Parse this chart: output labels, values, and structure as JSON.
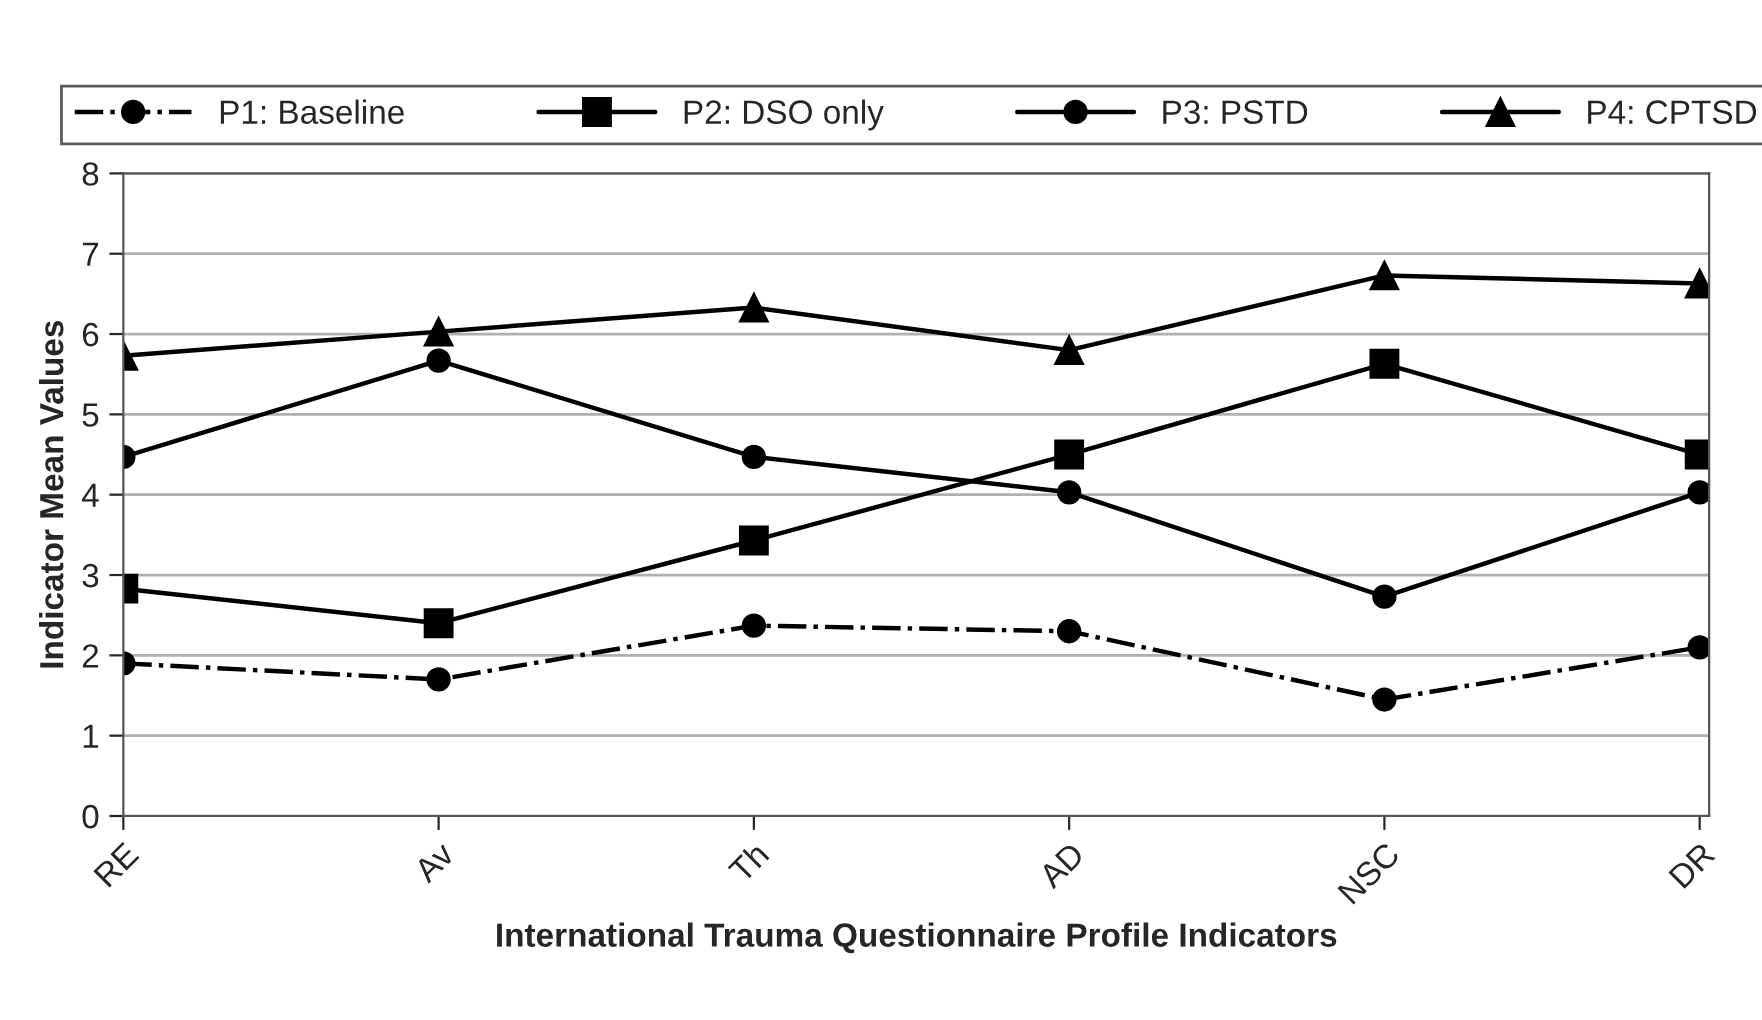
{
  "chart_data": {
    "type": "line",
    "xlabel": "International Trauma Questionnaire Profile Indicators",
    "ylabel": "Indicator Mean Values",
    "categories": [
      "RE",
      "Av",
      "Th",
      "AD",
      "NSC",
      "DR"
    ],
    "series": [
      {
        "name": "P1: Baseline",
        "color": "#000000",
        "marker": "circle",
        "line_style": "dashdot",
        "values": [
          1.9,
          1.7,
          2.37,
          2.3,
          1.45,
          2.1
        ]
      },
      {
        "name": "P2: DSO only",
        "color": "#000000",
        "marker": "square",
        "line_style": "solid",
        "values": [
          2.83,
          2.4,
          3.43,
          4.5,
          5.63,
          4.5
        ]
      },
      {
        "name": "P3: PSTD",
        "color": "#000000",
        "marker": "circle",
        "line_style": "solid",
        "values": [
          4.47,
          5.67,
          4.47,
          4.03,
          2.73,
          4.03
        ]
      },
      {
        "name": "P4: CPTSD",
        "color": "#000000",
        "marker": "triangle",
        "line_style": "solid",
        "values": [
          5.73,
          6.03,
          6.33,
          5.8,
          6.73,
          6.63
        ]
      }
    ],
    "ylim": [
      0,
      8
    ],
    "yticks": [
      0,
      1,
      2,
      3,
      4,
      5,
      6,
      7,
      8
    ],
    "grid": "y",
    "legend": "top"
  }
}
